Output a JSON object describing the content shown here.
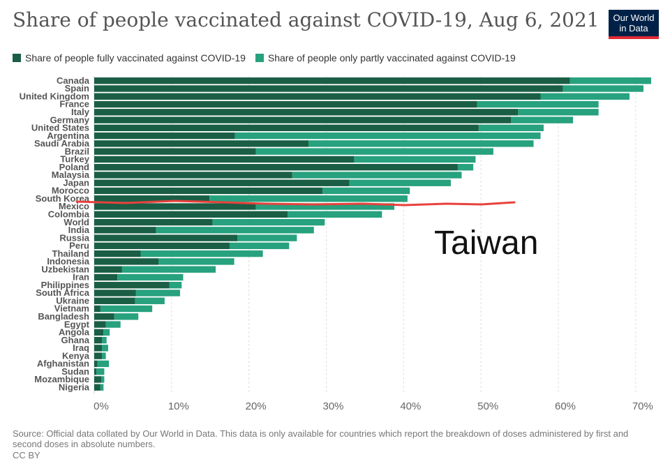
{
  "title": "Share of people vaccinated against COVID-19, Aug 6, 2021",
  "logo": {
    "line1": "Our World",
    "line2": "in Data",
    "bg": "#002147",
    "accent": "#e02b35"
  },
  "annotation": "Taiwan",
  "source": "Source: Official data collated by Our World in Data. This data is only available for countries which report the breakdown of doses administered by first and second doses in absolute numbers.",
  "license": "CC BY",
  "chart_data": {
    "type": "bar",
    "orientation": "horizontal",
    "stacked": true,
    "xlim": [
      0,
      72
    ],
    "xticks": [
      "0%",
      "10%",
      "20%",
      "30%",
      "40%",
      "50%",
      "60%",
      "70%"
    ],
    "grid": true,
    "legend_placement": "top",
    "categories": [
      "Canada",
      "Spain",
      "United Kingdom",
      "France",
      "Italy",
      "Germany",
      "United States",
      "Argentina",
      "Saudi Arabia",
      "Brazil",
      "Turkey",
      "Poland",
      "Malaysia",
      "Japan",
      "Morocco",
      "South Korea",
      "Mexico",
      "Colombia",
      "World",
      "India",
      "Russia",
      "Peru",
      "Thailand",
      "Indonesia",
      "Uzbekistan",
      "Iran",
      "Philippines",
      "South Africa",
      "Ukraine",
      "Vietnam",
      "Bangladesh",
      "Egypt",
      "Angola",
      "Ghana",
      "Iraq",
      "Kenya",
      "Afghanistan",
      "Sudan",
      "Mozambique",
      "Nigeria"
    ],
    "series": [
      {
        "name": "Share of people fully vaccinated against COVID-19",
        "color": "#1a5e45",
        "values": [
          61.5,
          60.6,
          57.7,
          49.5,
          54.8,
          53.9,
          49.7,
          18.2,
          27.7,
          20.9,
          33.6,
          47.0,
          25.6,
          33.0,
          29.5,
          14.9,
          20.9,
          25.0,
          15.3,
          8.0,
          18.5,
          17.5,
          6.0,
          8.3,
          3.6,
          3.0,
          9.7,
          5.4,
          5.3,
          0.8,
          2.6,
          1.5,
          1.2,
          1.0,
          1.0,
          1.0,
          0.4,
          0.3,
          0.9,
          0.8
        ]
      },
      {
        "name": "Share of people only partly vaccinated against COVID-19",
        "color": "#27a17e",
        "values": [
          10.5,
          10.4,
          11.5,
          15.7,
          10.4,
          8.0,
          8.4,
          39.5,
          29.1,
          30.7,
          15.7,
          2.0,
          21.9,
          13.1,
          11.3,
          25.6,
          17.9,
          12.2,
          14.5,
          20.4,
          7.7,
          7.7,
          15.8,
          9.8,
          12.1,
          8.5,
          1.6,
          5.7,
          3.8,
          6.7,
          3.1,
          1.9,
          0.8,
          0.6,
          0.8,
          0.5,
          1.5,
          1.0,
          0.4,
          0.4
        ]
      }
    ]
  }
}
